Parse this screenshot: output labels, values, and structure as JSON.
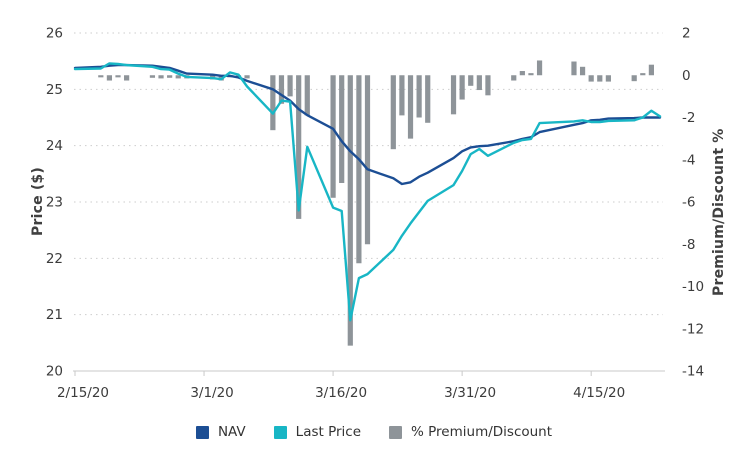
{
  "chart_data": {
    "type": "line+bar",
    "title": "",
    "x_dates": [
      "2/15/20",
      "2/18/20",
      "2/19/20",
      "2/20/20",
      "2/21/20",
      "2/24/20",
      "2/25/20",
      "2/26/20",
      "2/27/20",
      "2/28/20",
      "3/2/20",
      "3/3/20",
      "3/4/20",
      "3/5/20",
      "3/6/20",
      "3/9/20",
      "3/10/20",
      "3/11/20",
      "3/12/20",
      "3/13/20",
      "3/16/20",
      "3/17/20",
      "3/18/20",
      "3/19/20",
      "3/20/20",
      "3/23/20",
      "3/24/20",
      "3/25/20",
      "3/26/20",
      "3/27/20",
      "3/30/20",
      "3/31/20",
      "4/1/20",
      "4/2/20",
      "4/3/20",
      "4/6/20",
      "4/7/20",
      "4/8/20",
      "4/9/20",
      "4/13/20",
      "4/14/20",
      "4/15/20",
      "4/16/20",
      "4/17/20",
      "4/20/20",
      "4/21/20",
      "4/22/20",
      "4/23/20"
    ],
    "series": [
      {
        "name": "NAV",
        "type": "line",
        "axis": "left",
        "color": "#1c4e94",
        "values": [
          25.38,
          25.4,
          25.42,
          25.43,
          25.43,
          25.42,
          25.4,
          25.38,
          25.33,
          25.28,
          25.26,
          25.24,
          25.24,
          25.21,
          25.15,
          25.0,
          24.9,
          24.8,
          24.65,
          24.54,
          24.3,
          24.08,
          23.9,
          23.76,
          23.58,
          23.42,
          23.32,
          23.35,
          23.45,
          23.52,
          23.78,
          23.9,
          23.97,
          23.99,
          24.0,
          24.08,
          24.12,
          24.15,
          24.24,
          24.37,
          24.4,
          24.45,
          24.46,
          24.48,
          24.49,
          24.5,
          24.5,
          24.5
        ]
      },
      {
        "name": "Last Price",
        "type": "line",
        "axis": "left",
        "color": "#18b6c5",
        "values": [
          25.36,
          25.37,
          25.46,
          25.45,
          25.43,
          25.4,
          25.36,
          25.35,
          25.28,
          25.22,
          25.2,
          25.18,
          25.3,
          25.26,
          25.05,
          24.57,
          24.8,
          24.78,
          22.85,
          23.98,
          22.9,
          22.84,
          20.9,
          21.65,
          21.72,
          22.15,
          22.4,
          22.62,
          22.82,
          23.02,
          23.3,
          23.55,
          23.85,
          23.94,
          23.82,
          24.05,
          24.1,
          24.12,
          24.4,
          24.43,
          24.45,
          24.42,
          24.42,
          24.44,
          24.45,
          24.5,
          24.62,
          24.52
        ]
      },
      {
        "name": "% Premium/Discount",
        "type": "bar",
        "axis": "right",
        "color": "#8e9499",
        "values": [
          null,
          -0.1,
          -0.25,
          -0.1,
          -0.25,
          -0.12,
          -0.15,
          -0.12,
          -0.15,
          -0.15,
          -0.2,
          -0.25,
          -0.1,
          -0.12,
          -0.15,
          -2.6,
          -1.35,
          -1.0,
          -6.8,
          -1.9,
          -5.8,
          -5.1,
          -12.8,
          -8.9,
          -8.0,
          -3.5,
          -1.9,
          -3.0,
          -2.0,
          -2.25,
          -1.85,
          -1.15,
          -0.5,
          -0.7,
          -0.95,
          -0.25,
          0.2,
          0.1,
          0.7,
          0.65,
          0.4,
          -0.3,
          -0.3,
          -0.3,
          -0.28,
          0.1,
          0.5,
          null
        ]
      }
    ],
    "axes": {
      "left": {
        "title": "Price ($)",
        "range": [
          20,
          26
        ],
        "ticks": [
          26,
          25,
          24,
          23,
          22,
          21,
          20
        ]
      },
      "right": {
        "title": "Premium/Discount %",
        "range": [
          -14,
          2
        ],
        "ticks": [
          2,
          0,
          -2,
          -4,
          -6,
          -8,
          -10,
          -12,
          -14
        ]
      },
      "x": {
        "ticks": [
          {
            "label": "2/15/20",
            "date": "2/15/20"
          },
          {
            "label": "3/1/20",
            "date": "3/1/20"
          },
          {
            "label": "3/16/20",
            "date": "3/16/20"
          },
          {
            "label": "3/31/20",
            "date": "3/31/20"
          },
          {
            "label": "4/15/20",
            "date": "4/15/20"
          }
        ]
      }
    },
    "grid": "dotted-horizontal",
    "legend_position": "bottom",
    "colors": {
      "axis_line": "#c9c9c9",
      "gridline": "#cdcdcd",
      "tick_text": "#3c3c3c"
    }
  }
}
